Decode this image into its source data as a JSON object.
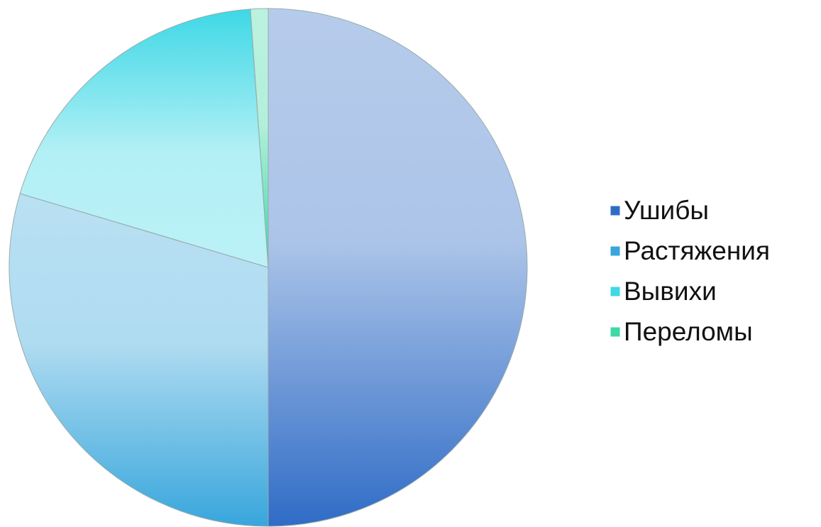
{
  "chart_data": {
    "type": "pie",
    "categories": [
      "Ушибы",
      "Растяжения",
      "Вывихи",
      "Переломы"
    ],
    "values": [
      50,
      29.6,
      19.3,
      1.1
    ],
    "colors": [
      "#2f6cc6",
      "#38a6dc",
      "#3ed8e6",
      "#3fd8a6"
    ],
    "legend": "right"
  }
}
